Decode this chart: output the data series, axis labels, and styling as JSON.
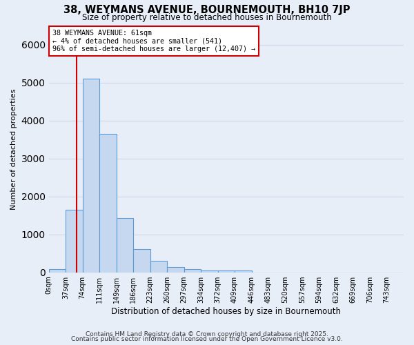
{
  "title": "38, WEYMANS AVENUE, BOURNEMOUTH, BH10 7JP",
  "subtitle": "Size of property relative to detached houses in Bournemouth",
  "xlabel": "Distribution of detached houses by size in Bournemouth",
  "ylabel": "Number of detached properties",
  "bin_labels": [
    "0sqm",
    "37sqm",
    "74sqm",
    "111sqm",
    "149sqm",
    "186sqm",
    "223sqm",
    "260sqm",
    "297sqm",
    "334sqm",
    "372sqm",
    "409sqm",
    "446sqm",
    "483sqm",
    "520sqm",
    "557sqm",
    "594sqm",
    "632sqm",
    "669sqm",
    "706sqm",
    "743sqm"
  ],
  "bar_heights": [
    75,
    1650,
    5100,
    3650,
    1430,
    610,
    310,
    135,
    75,
    55,
    40,
    55,
    0,
    0,
    0,
    0,
    0,
    0,
    0,
    0,
    0
  ],
  "bar_color": "#c5d8f0",
  "bar_edge_color": "#5b9bd5",
  "grid_color": "#d0d8e8",
  "background_color": "#e8eef8",
  "annotation_text": "38 WEYMANS AVENUE: 61sqm\n← 4% of detached houses are smaller (541)\n96% of semi-detached houses are larger (12,407) →",
  "annotation_box_color": "#ffffff",
  "annotation_box_edge_color": "#cc0000",
  "red_line_color": "#cc0000",
  "ylim": [
    0,
    6500
  ],
  "footer_line1": "Contains HM Land Registry data © Crown copyright and database right 2025.",
  "footer_line2": "Contains public sector information licensed under the Open Government Licence v3.0."
}
